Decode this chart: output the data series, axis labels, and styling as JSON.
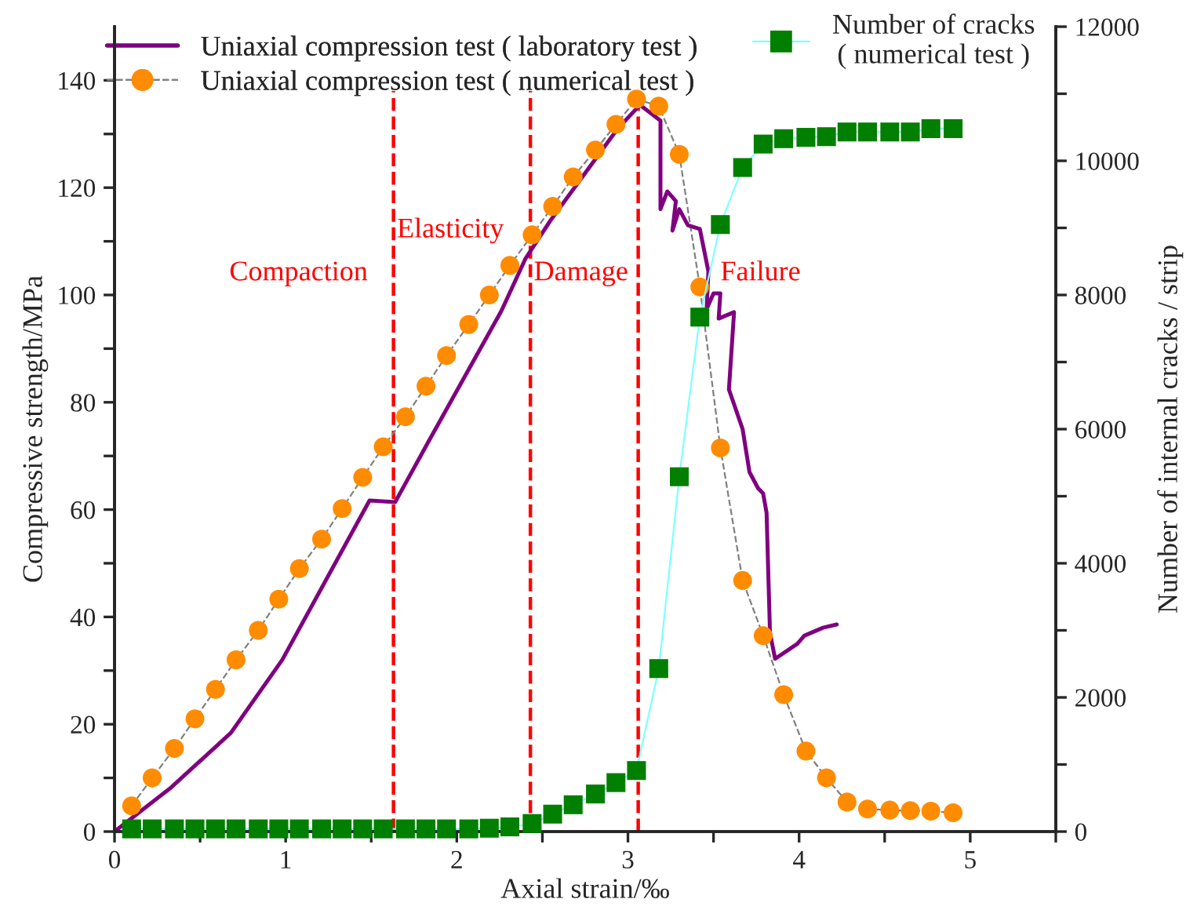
{
  "chart_data": {
    "type": "line",
    "xlabel": "Axial strain/‰",
    "ylabel": "Compressive strength/MPa",
    "y2label": "Number of internal cracks / strip",
    "xlim": [
      0,
      5.5
    ],
    "xticks": [
      0,
      {
        "value": 0.5,
        "label": null
      },
      1,
      {
        "value": 1.5,
        "label": null
      },
      2,
      {
        "value": 2.5,
        "label": null
      },
      3,
      {
        "value": 3.5,
        "label": null
      },
      4,
      {
        "value": 4.5,
        "label": null
      },
      5,
      {
        "value": 5.5,
        "label": null
      }
    ],
    "ylim": [
      0,
      150
    ],
    "yticks": [
      0,
      {
        "value": 10,
        "label": null
      },
      20,
      {
        "value": 30,
        "label": null
      },
      40,
      {
        "value": 50,
        "label": null
      },
      60,
      {
        "value": 70,
        "label": null
      },
      80,
      {
        "value": 90,
        "label": null
      },
      100,
      {
        "value": 110,
        "label": null
      },
      120,
      {
        "value": 130,
        "label": null
      },
      140
    ],
    "y2lim": [
      0,
      12000
    ],
    "y2ticks": [
      0,
      {
        "value": 1000,
        "label": null
      },
      2000,
      {
        "value": 3000,
        "label": null
      },
      4000,
      {
        "value": 5000,
        "label": null
      },
      6000,
      {
        "value": 7000,
        "label": null
      },
      8000,
      {
        "value": 9000,
        "label": null
      },
      10000,
      {
        "value": 11000,
        "label": null
      },
      12000
    ],
    "grid": false,
    "legend": "top",
    "series": [
      {
        "name": "Uniaxial compression test ( laboratory test )",
        "color": "#800080",
        "marker": "none",
        "line_style": "solid",
        "x": [
          0,
          0.33,
          0.68,
          0.98,
          1.49,
          1.64,
          1.84,
          2.26,
          2.4,
          2.55,
          2.94,
          3.07,
          3.19,
          3.19,
          3.23,
          3.28,
          3.26,
          3.3,
          3.35,
          3.42,
          3.47,
          3.46,
          3.5,
          3.54,
          3.53,
          3.62,
          3.59,
          3.67,
          3.71,
          3.76,
          3.79,
          3.81,
          3.83,
          3.86,
          3.99,
          4.03,
          4.14,
          4.22
        ],
        "values": [
          0,
          8.2,
          18.4,
          32,
          61.7,
          61.4,
          73,
          97,
          106.7,
          114,
          131,
          135.4,
          132.5,
          116,
          119.3,
          117.5,
          112,
          116,
          113,
          112.3,
          104.4,
          97.4,
          100.3,
          100.3,
          95.6,
          96.8,
          82.4,
          75,
          67,
          64,
          63,
          59.4,
          37,
          32.2,
          35,
          36.5,
          38,
          38.6
        ]
      },
      {
        "name": "Uniaxial compression test ( numerical test )",
        "color": "#ff8c00",
        "marker": "circle",
        "line_style": "dashed",
        "x": [
          0.1,
          0.22,
          0.35,
          0.47,
          0.59,
          0.71,
          0.84,
          0.96,
          1.08,
          1.21,
          1.33,
          1.45,
          1.57,
          1.7,
          1.82,
          1.94,
          2.07,
          2.19,
          2.31,
          2.44,
          2.56,
          2.68,
          2.81,
          2.93,
          3.05,
          3.18,
          3.3,
          3.42,
          3.54,
          3.67,
          3.79,
          3.91,
          4.04,
          4.16,
          4.28,
          4.4,
          4.53,
          4.65,
          4.77,
          4.9
        ],
        "values": [
          4.8,
          10,
          15.5,
          21,
          26.5,
          32,
          37.5,
          43.3,
          49,
          54.5,
          60.2,
          66,
          71.7,
          77.3,
          83,
          88.7,
          94.5,
          100,
          105.5,
          111.2,
          116.5,
          122,
          127,
          131.8,
          136.5,
          135.2,
          126.2,
          101.5,
          71.5,
          46.8,
          36.5,
          25.5,
          15,
          10,
          5.5,
          4.2,
          4,
          3.9,
          3.8,
          3.5
        ]
      },
      {
        "name": "Number of cracks\n( numerical test )",
        "axis": "y2",
        "color": "#007f00",
        "marker": "square",
        "line_style": "solid",
        "x": [
          0.1,
          0.22,
          0.35,
          0.47,
          0.59,
          0.71,
          0.84,
          0.96,
          1.08,
          1.21,
          1.33,
          1.45,
          1.57,
          1.7,
          1.82,
          1.94,
          2.07,
          2.19,
          2.31,
          2.44,
          2.56,
          2.68,
          2.81,
          2.93,
          3.05,
          3.18,
          3.3,
          3.42,
          3.54,
          3.67,
          3.79,
          3.91,
          4.04,
          4.16,
          4.28,
          4.4,
          4.53,
          4.65,
          4.77,
          4.9
        ],
        "values": [
          40,
          40,
          40,
          40,
          40,
          40,
          40,
          40,
          40,
          40,
          40,
          40,
          40,
          40,
          40,
          40,
          40,
          50,
          70,
          120,
          260,
          400,
          560,
          730,
          910,
          2430,
          5290,
          7670,
          9050,
          9900,
          10250,
          10330,
          10350,
          10360,
          10430,
          10430,
          10430,
          10430,
          10480,
          10480
        ]
      }
    ],
    "ref_lines": [
      {
        "axis": "x",
        "value": 1.63,
        "color": "#ff0000",
        "line_style": "dashed"
      },
      {
        "axis": "x",
        "value": 2.43,
        "color": "#ff0000",
        "line_style": "dashed"
      },
      {
        "axis": "x",
        "value": 3.06,
        "color": "#ff0000",
        "line_style": "dashed"
      }
    ],
    "annotations": [
      "Compaction",
      "Elasticity",
      "Damage",
      "Failure"
    ]
  }
}
